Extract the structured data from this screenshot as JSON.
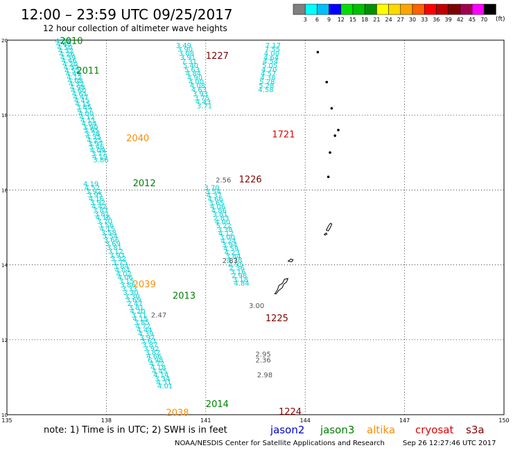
{
  "header": {
    "title": "12:00 – 23:59 UTC 09/25/2017",
    "subtitle": "12 hour collection of altimeter wave heights"
  },
  "colorbar": {
    "colors": [
      "#808080",
      "#00ffff",
      "#00bfff",
      "#0000ff",
      "#00e000",
      "#00c000",
      "#009000",
      "#ffff00",
      "#ffd700",
      "#ffa500",
      "#ff6000",
      "#ff0000",
      "#c00000",
      "#800000",
      "#a00050",
      "#ff00ff",
      "#000000"
    ],
    "labels": [
      "3",
      "6",
      "9",
      "12",
      "15",
      "18",
      "21",
      "24",
      "27",
      "30",
      "33",
      "36",
      "39",
      "42",
      "45",
      "70"
    ],
    "unit": "(ft)"
  },
  "footer": {
    "note": "note: 1) Time is in UTC; 2) SWH is in feet",
    "credit": "NOAA/NESDIS Center for Satellite Applications and Research",
    "timestamp": "Sep 26 12:27:46 UTC 2017"
  },
  "legend": [
    {
      "name": "jason2",
      "color": "#0000d0"
    },
    {
      "name": "jason3",
      "color": "#008000"
    },
    {
      "name": "altika",
      "color": "#ff8c00"
    },
    {
      "name": "cryosat",
      "color": "#e00000"
    },
    {
      "name": "s3a",
      "color": "#800000"
    }
  ],
  "chart_data": {
    "type": "scatter",
    "xlim": [
      135,
      150
    ],
    "ylim": [
      10,
      20
    ],
    "xticks": [
      "135",
      "138",
      "141",
      "144",
      "147",
      "150"
    ],
    "yticks": [
      "10",
      "12",
      "14",
      "16",
      "18",
      "20"
    ],
    "grid": true,
    "pass_labels": [
      {
        "text": "2010",
        "lon": 136.6,
        "lat": 19.9,
        "color": "#008000"
      },
      {
        "text": "2011",
        "lon": 137.1,
        "lat": 19.1,
        "color": "#008000"
      },
      {
        "text": "2040",
        "lon": 138.6,
        "lat": 17.3,
        "color": "#ff8c00"
      },
      {
        "text": "2012",
        "lon": 138.8,
        "lat": 16.1,
        "color": "#008000"
      },
      {
        "text": "2039",
        "lon": 138.8,
        "lat": 13.4,
        "color": "#ff8c00"
      },
      {
        "text": "2013",
        "lon": 140.0,
        "lat": 13.1,
        "color": "#008000"
      },
      {
        "text": "2038",
        "lon": 139.8,
        "lat": 9.97,
        "color": "#ff8c00"
      },
      {
        "text": "2014",
        "lon": 141.0,
        "lat": 10.2,
        "color": "#008000"
      },
      {
        "text": "1227",
        "lon": 141.0,
        "lat": 19.5,
        "color": "#800000"
      },
      {
        "text": "1721",
        "lon": 143.0,
        "lat": 17.4,
        "color": "#e00000"
      },
      {
        "text": "1226",
        "lon": 142.0,
        "lat": 16.2,
        "color": "#800000"
      },
      {
        "text": "1225",
        "lon": 142.8,
        "lat": 12.5,
        "color": "#800000"
      },
      {
        "text": "1224",
        "lon": 143.2,
        "lat": 10.0,
        "color": "#800000"
      }
    ],
    "tracks": [
      {
        "color": "#00d0d0",
        "lon_start": 136.45,
        "lat_start": 19.92,
        "lon_step": 0.032,
        "lat_step": -0.0885,
        "values": [
          "4.82",
          "4.48",
          "4.50",
          "4.32",
          "4.26",
          "4.39",
          "4.46",
          "4.20",
          "4.32",
          "4.52",
          "4.49",
          "4.12",
          "4.08",
          "4.32",
          "4.98",
          "4.60",
          "4.61",
          "4.47",
          "4.45",
          "4.15",
          "3.85",
          "4.17",
          "4.00",
          "4.12",
          "4.11",
          "4.04",
          "3.90",
          "3.95",
          "3.78",
          "4.35",
          "4.25",
          "3.97",
          "3.46",
          "4.09",
          "3.77",
          "4.19",
          "3.86"
        ]
      },
      {
        "color": "#00d0d0",
        "lon_start": 137.3,
        "lat_start": 16.1,
        "lon_step": 0.0415,
        "lat_step": -0.1,
        "values": [
          "4.19",
          "4.52",
          "3.92",
          "3.95",
          "4.16",
          "3.92",
          "4.42",
          "3.87",
          "3.81",
          "4.16",
          "3.70",
          "3.56",
          "4.15",
          "3.58",
          "3.54",
          "3.66",
          "3.69",
          "3.81",
          "3.12",
          "3.93",
          "3.32",
          "3.75",
          "3.84",
          "4.04",
          "4.02",
          "4.06",
          "3.15",
          "3.86",
          "3.33",
          "3.30",
          "3.30",
          "3.69",
          "2.47",
          "3.81",
          "4.20",
          "3.71",
          "4.15",
          "3.85",
          "4.72",
          "4.44",
          "4.39",
          "3.97",
          "3.63",
          "3.87",
          "3.92",
          "3.82",
          "4.66",
          "6.98",
          "4.72",
          "4.18",
          "4.45",
          "4.14",
          "3.34",
          "4.31",
          "4.01"
        ]
      },
      {
        "color": "#00d0d0",
        "lon_start": 140.1,
        "lat_start": 19.8,
        "lon_step": 0.042,
        "lat_step": -0.108,
        "values": [
          "3.49",
          "3.90",
          "3.08",
          "3.91",
          "7.31",
          "5.40",
          "5.63",
          "4.84",
          "4.90",
          "4.00",
          "4.08",
          "4.63",
          "3.93",
          "3.75",
          "4.43",
          "3.71"
        ]
      },
      {
        "color": "#00d0d0",
        "lon_start": 140.95,
        "lat_start": 16.0,
        "lon_step": 0.036,
        "lat_step": -0.102,
        "values": [
          "3.70",
          "3.54",
          "4.37",
          "4.66",
          "3.65",
          "4.06",
          "4.86",
          "3.81",
          "2.83",
          "4.00",
          "5.22",
          "3.38",
          "4.12",
          "3.00",
          "4.24",
          "3.94",
          "4.59",
          "4.23",
          "3.84",
          "4.78",
          "2.95",
          "2.36",
          "3.16",
          "2.98",
          "3.18",
          "4.84"
        ]
      },
      {
        "color": "#00d0d0",
        "lon_start": 142.8,
        "lat_start": 19.8,
        "lon_step": -0.02,
        "lat_step": -0.108,
        "values": [
          "7.17",
          "7.55",
          "4.00",
          "4.64",
          "4.54",
          "5.05",
          "4.70",
          "4.57",
          "4.38",
          "5.28",
          "5.28",
          "4.58"
        ]
      }
    ],
    "gray_values": [
      {
        "text": "2.56",
        "lon": 141.3,
        "lat": 16.2
      },
      {
        "text": "2.83",
        "lon": 141.5,
        "lat": 14.05
      },
      {
        "text": "2.47",
        "lon": 139.35,
        "lat": 12.6
      },
      {
        "text": "3.00",
        "lon": 142.3,
        "lat": 12.85
      },
      {
        "text": "2.95",
        "lon": 142.5,
        "lat": 11.55
      },
      {
        "text": "2.36",
        "lon": 142.5,
        "lat": 11.4
      },
      {
        "text": "2.98",
        "lon": 142.55,
        "lat": 11.0
      }
    ],
    "islands": [
      {
        "lon": 144.38,
        "lat": 19.68
      },
      {
        "lon": 144.65,
        "lat": 18.88
      },
      {
        "lon": 144.8,
        "lat": 18.18
      },
      {
        "lon": 145.0,
        "lat": 17.6
      },
      {
        "lon": 144.9,
        "lat": 17.45
      },
      {
        "lon": 144.75,
        "lat": 17.0
      },
      {
        "lon": 144.7,
        "lat": 16.35
      }
    ]
  }
}
